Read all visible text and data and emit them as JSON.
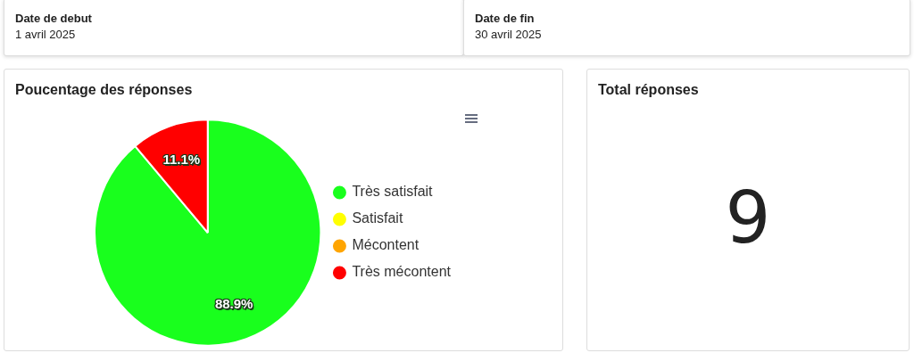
{
  "chart_data": [
    {
      "type": "other",
      "title": "Date de debut",
      "annotations": [
        "1 avril 2025"
      ]
    },
    {
      "type": "other",
      "title": "Date de fin",
      "annotations": [
        "30 avril 2025"
      ]
    },
    {
      "type": "pie",
      "title": "Poucentage des réponses",
      "categories": [
        "Très satisfait",
        "Satisfait",
        "Mécontent",
        "Très mécontent"
      ],
      "values": [
        88.9,
        0,
        0,
        11.1
      ],
      "colors": [
        "#19ff1d",
        "#ffff00",
        "#ffa500",
        "#ff0000"
      ],
      "value_labels": [
        "88.9%",
        null,
        null,
        "11.1%"
      ],
      "legend": "right"
    },
    {
      "type": "other",
      "title": "Total réponses",
      "annotations": [
        "9"
      ]
    }
  ]
}
